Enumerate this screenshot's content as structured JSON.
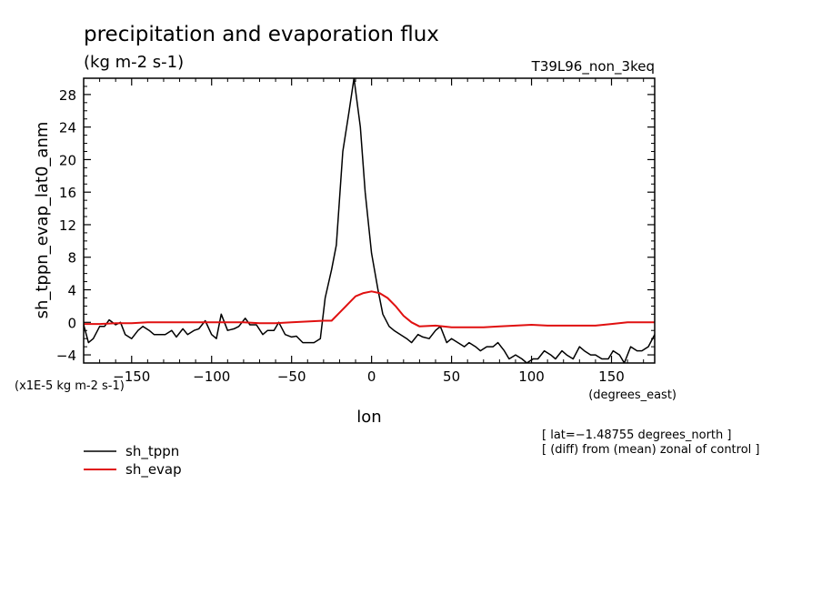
{
  "chart_data": {
    "type": "line",
    "title": "precipitation and evaporation flux",
    "subtitle": "(kg m-2 s-1)",
    "experiment_label": "T39L96_non_3keq",
    "ylabel": "sh_tppn_evap_lat0_anm",
    "y_units_note": "(x1E-5 kg m-2 s-1)",
    "xlabel": "lon",
    "x_units": "(degrees_east)",
    "xlim": [
      -180,
      177
    ],
    "ylim": [
      -5,
      30
    ],
    "x_ticks": [
      -150,
      -100,
      -50,
      0,
      50,
      100,
      150
    ],
    "x_tick_labels": [
      "−150",
      "−100",
      "−50",
      "0",
      "50",
      "100",
      "150"
    ],
    "y_ticks": [
      -4,
      0,
      4,
      8,
      12,
      16,
      20,
      24,
      28
    ],
    "y_tick_labels": [
      "−4",
      "0",
      "4",
      "8",
      "12",
      "16",
      "20",
      "24",
      "28"
    ],
    "grid": false,
    "legend_position": "below-left",
    "notes": [
      "[ lat=−1.48755 degrees_north ]",
      "[ (diff) from (mean) zonal of control ]"
    ],
    "series": [
      {
        "name": "sh_tppn",
        "color": "#000000",
        "x": [
          -180,
          -177,
          -174,
          -170,
          -167,
          -164,
          -160,
          -157,
          -154,
          -150,
          -146,
          -143,
          -139,
          -136,
          -132,
          -129,
          -125,
          -122,
          -118,
          -115,
          -111,
          -108,
          -104,
          -100,
          -97,
          -94,
          -90,
          -86,
          -83,
          -79,
          -76,
          -72,
          -68,
          -65,
          -61,
          -58,
          -54,
          -50,
          -47,
          -43,
          -40,
          -36,
          -32,
          -29,
          -25,
          -22,
          -18,
          -14,
          -11,
          -7,
          -4,
          0,
          4,
          7,
          11,
          14,
          18,
          22,
          25,
          29,
          32,
          36,
          40,
          43,
          47,
          50,
          54,
          58,
          61,
          65,
          68,
          72,
          76,
          79,
          83,
          86,
          90,
          94,
          97,
          101,
          104,
          108,
          112,
          115,
          119,
          122,
          126,
          130,
          133,
          137,
          140,
          144,
          148,
          151,
          155,
          158,
          162,
          166,
          169,
          173,
          177
        ],
        "y": [
          -0.3,
          -2.5,
          -2.0,
          -0.5,
          -0.5,
          0.3,
          -0.3,
          0.0,
          -1.5,
          -2.0,
          -1.0,
          -0.5,
          -1.0,
          -1.5,
          -1.5,
          -1.5,
          -1.0,
          -1.8,
          -0.8,
          -1.5,
          -1.0,
          -0.8,
          0.2,
          -1.5,
          -2.0,
          1.0,
          -1.0,
          -0.8,
          -0.5,
          0.5,
          -0.3,
          -0.3,
          -1.5,
          -1.0,
          -1.0,
          0.0,
          -1.5,
          -1.8,
          -1.7,
          -2.5,
          -2.5,
          -2.5,
          -2.0,
          3.0,
          6.5,
          9.5,
          21.0,
          26.0,
          30.0,
          24.0,
          16.0,
          8.5,
          4.0,
          1.0,
          -0.5,
          -1.0,
          -1.5,
          -2.0,
          -2.5,
          -1.5,
          -1.8,
          -2.0,
          -1.0,
          -0.5,
          -2.5,
          -2.0,
          -2.5,
          -3.0,
          -2.5,
          -3.0,
          -3.5,
          -3.0,
          -3.0,
          -2.5,
          -3.5,
          -4.5,
          -4.0,
          -4.5,
          -5.0,
          -4.5,
          -4.5,
          -3.5,
          -4.0,
          -4.5,
          -3.5,
          -4.0,
          -4.5,
          -3.0,
          -3.5,
          -4.0,
          -4.0,
          -4.5,
          -4.5,
          -3.5,
          -4.0,
          -5.0,
          -3.0,
          -3.5,
          -3.5,
          -3.0,
          -1.5
        ],
        "_ignore": null
      },
      {
        "name": "sh_evap",
        "color": "#e01010",
        "x": [
          -180,
          -170,
          -160,
          -150,
          -140,
          -130,
          -120,
          -110,
          -100,
          -90,
          -80,
          -70,
          -60,
          -50,
          -40,
          -30,
          -25,
          -20,
          -15,
          -10,
          -5,
          0,
          5,
          10,
          15,
          20,
          25,
          30,
          40,
          50,
          60,
          70,
          80,
          90,
          100,
          110,
          120,
          130,
          140,
          150,
          160,
          170,
          177
        ],
        "y": [
          -0.2,
          -0.2,
          -0.1,
          -0.1,
          0.0,
          0.0,
          0.0,
          0.0,
          0.0,
          0.0,
          0.0,
          -0.1,
          -0.1,
          0.0,
          0.1,
          0.2,
          0.2,
          1.2,
          2.2,
          3.2,
          3.6,
          3.8,
          3.6,
          3.0,
          2.0,
          0.8,
          0.0,
          -0.5,
          -0.4,
          -0.6,
          -0.6,
          -0.6,
          -0.5,
          -0.4,
          -0.3,
          -0.4,
          -0.4,
          -0.4,
          -0.4,
          -0.2,
          0.0,
          0.0,
          0.0
        ]
      }
    ]
  }
}
